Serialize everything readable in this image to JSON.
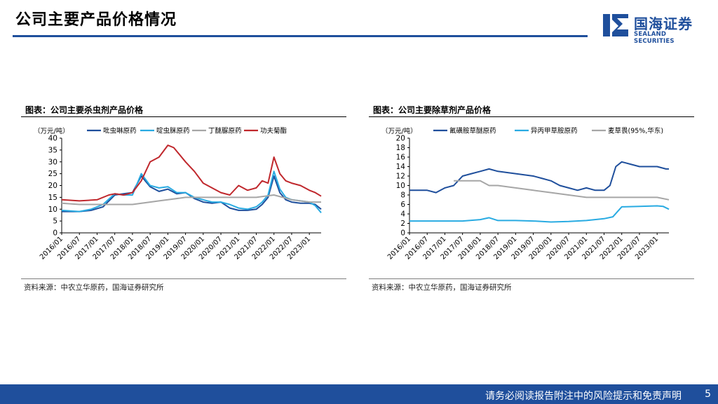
{
  "page": {
    "title": "公司主要产品价格情况",
    "logo_cn": "国海证券",
    "logo_en": "SEALAND SECURITIES",
    "footer": "请务必阅读报告附注中的风险提示和免责声明",
    "page_number": "5",
    "colors": {
      "brand": "#1f4f9c"
    }
  },
  "chart_data": [
    {
      "type": "line",
      "panel_title": "图表：公司主要杀虫剂产品价格",
      "source": "资料来源：中农立华原药，国海证券研究所",
      "unit": "（万元/吨）",
      "ylim": [
        0,
        40
      ],
      "yticks": [
        0,
        5,
        10,
        15,
        20,
        25,
        30,
        35,
        40
      ],
      "xlim": [
        "2016/01",
        "2023/05"
      ],
      "xticks": [
        "2016/01",
        "2016/07",
        "2017/01",
        "2017/07",
        "2018/01",
        "2018/07",
        "2019/01",
        "2019/07",
        "2020/01",
        "2020/07",
        "2021/01",
        "2021/07",
        "2022/01",
        "2022/07",
        "2023/01"
      ],
      "legend": "top",
      "series": [
        {
          "name": "吡虫啉原药",
          "color": "#1f4f9c",
          "x": [
            "2016/01",
            "2016/07",
            "2016/11",
            "2017/03",
            "2017/07",
            "2017/10",
            "2018/01",
            "2018/04",
            "2018/07",
            "2018/10",
            "2019/01",
            "2019/04",
            "2019/07",
            "2019/10",
            "2020/01",
            "2020/04",
            "2020/07",
            "2020/10",
            "2021/01",
            "2021/04",
            "2021/07",
            "2021/09",
            "2021/11",
            "2022/01",
            "2022/03",
            "2022/05",
            "2022/07",
            "2022/10",
            "2023/01",
            "2023/03",
            "2023/05"
          ],
          "y": [
            9,
            9,
            9.5,
            11,
            16,
            16.5,
            17,
            24,
            19.5,
            17.5,
            18.5,
            16.5,
            17,
            14.5,
            13,
            12.5,
            13,
            10.5,
            9.5,
            9.5,
            10,
            12,
            15,
            24,
            17,
            14,
            13,
            12.5,
            12.5,
            12,
            10
          ]
        },
        {
          "name": "啶虫脒原药",
          "color": "#29abe2",
          "x": [
            "2016/01",
            "2016/07",
            "2016/11",
            "2017/03",
            "2017/07",
            "2017/10",
            "2018/01",
            "2018/04",
            "2018/07",
            "2018/10",
            "2019/01",
            "2019/04",
            "2019/07",
            "2019/10",
            "2020/01",
            "2020/04",
            "2020/07",
            "2020/10",
            "2021/01",
            "2021/04",
            "2021/07",
            "2021/09",
            "2021/11",
            "2022/01",
            "2022/03",
            "2022/05",
            "2022/07",
            "2022/10",
            "2023/01",
            "2023/03",
            "2023/05"
          ],
          "y": [
            9.5,
            9,
            10,
            12,
            16.5,
            16,
            16,
            25,
            20,
            19,
            19.5,
            17,
            17,
            15,
            14,
            13,
            13,
            12,
            10.5,
            10,
            11,
            13,
            16,
            26,
            18.5,
            15,
            14,
            13.5,
            13,
            11.5,
            8.5
          ]
        },
        {
          "name": "丁醚脲原药",
          "color": "#a6a6a6",
          "x": [
            "2016/01",
            "2016/07",
            "2017/01",
            "2017/07",
            "2018/01",
            "2018/07",
            "2018/10",
            "2019/01",
            "2019/07",
            "2020/01",
            "2020/07",
            "2021/01",
            "2021/07",
            "2022/01",
            "2022/07",
            "2023/01",
            "2023/05"
          ],
          "y": [
            12.5,
            12,
            12,
            12,
            12,
            13,
            13.5,
            14,
            15,
            15,
            15,
            15,
            15,
            16,
            14,
            13,
            13
          ]
        },
        {
          "name": "功夫菊酯",
          "color": "#c0282d",
          "x": [
            "2016/01",
            "2016/07",
            "2017/01",
            "2017/05",
            "2017/07",
            "2017/10",
            "2018/01",
            "2018/04",
            "2018/07",
            "2018/10",
            "2019/01",
            "2019/03",
            "2019/07",
            "2019/10",
            "2020/01",
            "2020/04",
            "2020/07",
            "2020/10",
            "2021/01",
            "2021/04",
            "2021/07",
            "2021/09",
            "2021/11",
            "2022/01",
            "2022/03",
            "2022/05",
            "2022/07",
            "2022/10",
            "2023/01",
            "2023/03",
            "2023/05"
          ],
          "y": [
            14,
            13.5,
            14,
            16,
            16.5,
            16,
            17,
            22,
            30,
            32,
            37,
            36,
            30,
            26,
            21,
            19,
            17,
            16,
            20,
            18,
            19,
            22,
            21,
            32,
            25,
            22,
            21,
            20,
            18,
            17,
            15.5
          ]
        }
      ]
    },
    {
      "type": "line",
      "panel_title": "图表：公司主要除草剂产品价格",
      "source": "资料来源：中农立华原药，国海证券研究所",
      "unit": "（万元/吨）",
      "ylim": [
        0,
        20
      ],
      "yticks": [
        0,
        2,
        4,
        6,
        8,
        10,
        12,
        14,
        16,
        18,
        20
      ],
      "xlim": [
        "2016/01",
        "2023/05"
      ],
      "xticks": [
        "2016/01",
        "2016/07",
        "2017/01",
        "2017/07",
        "2018/01",
        "2018/07",
        "2019/01",
        "2019/07",
        "2020/01",
        "2020/07",
        "2021/01",
        "2021/07",
        "2022/01",
        "2022/07",
        "2023/01"
      ],
      "legend": "top",
      "series": [
        {
          "name": "氟磺胺草醚原药",
          "color": "#1f4f9c",
          "x": [
            "2016/01",
            "2016/07",
            "2016/10",
            "2017/01",
            "2017/04",
            "2017/07",
            "2017/10",
            "2018/01",
            "2018/04",
            "2018/07",
            "2019/01",
            "2019/07",
            "2019/10",
            "2020/01",
            "2020/04",
            "2020/07",
            "2020/10",
            "2021/01",
            "2021/04",
            "2021/07",
            "2021/09",
            "2021/11",
            "2022/01",
            "2022/04",
            "2022/07",
            "2022/10",
            "2023/01",
            "2023/04",
            "2023/05"
          ],
          "y": [
            9,
            9,
            8.5,
            9.5,
            10,
            12,
            12.5,
            13,
            13.5,
            13,
            12.5,
            12,
            11.5,
            11,
            10,
            9.5,
            9,
            9.5,
            9,
            9,
            10,
            14,
            15,
            14.5,
            14,
            14,
            14,
            13.5,
            13.5
          ]
        },
        {
          "name": "异丙甲草胺原药",
          "color": "#29abe2",
          "x": [
            "2016/01",
            "2016/07",
            "2017/01",
            "2017/07",
            "2018/01",
            "2018/04",
            "2018/07",
            "2019/01",
            "2019/07",
            "2020/01",
            "2020/07",
            "2021/01",
            "2021/07",
            "2021/10",
            "2022/01",
            "2022/07",
            "2023/01",
            "2023/03",
            "2023/05"
          ],
          "y": [
            2.5,
            2.5,
            2.5,
            2.5,
            2.8,
            3.2,
            2.6,
            2.6,
            2.5,
            2.3,
            2.4,
            2.6,
            3,
            3.4,
            5.5,
            5.6,
            5.7,
            5.6,
            5
          ]
        },
        {
          "name": "麦草畏(95%,华东)",
          "color": "#a6a6a6",
          "x": [
            "2017/04",
            "2017/07",
            "2018/01",
            "2018/04",
            "2018/07",
            "2019/01",
            "2019/07",
            "2020/01",
            "2020/07",
            "2021/01",
            "2021/07",
            "2022/01",
            "2022/07",
            "2023/01",
            "2023/05"
          ],
          "y": [
            11,
            11,
            11,
            10,
            10,
            9.5,
            9,
            8.5,
            8,
            7.5,
            7.5,
            7.5,
            7.5,
            7.5,
            7
          ]
        }
      ]
    }
  ]
}
